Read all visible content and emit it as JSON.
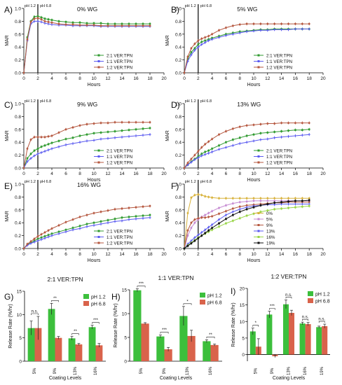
{
  "colors": {
    "green": "#2f9a2f",
    "blue": "#5a5af0",
    "brown": "#b5573f",
    "gold": "#d8b23a",
    "violet": "#c58ad2",
    "lime": "#9bd64a",
    "black": "#111111",
    "bar_green": "#3cbf3c",
    "bar_red": "#d9634b",
    "pink": "#f3a7c8"
  },
  "panel_letters": [
    "A)",
    "B)",
    "C)",
    "D)",
    "E)",
    "F)",
    "G)",
    "H)",
    "I)"
  ],
  "ph_labels": {
    "left": "pH 1.2",
    "right": "pH 6.8"
  },
  "chart_data": [
    {
      "id": "A",
      "type": "line",
      "title": "0% WG",
      "xlabel": "Hours",
      "ylabel": "MAR",
      "ylim": [
        0,
        1.0
      ],
      "xlim": [
        0,
        20
      ],
      "xticks": [
        0,
        2,
        4,
        6,
        8,
        10,
        12,
        14,
        16,
        18,
        20
      ],
      "yticks": [
        0,
        0.2,
        0.4,
        0.6,
        0.8,
        1.0
      ],
      "ph_line_x": 2,
      "legend_position": "bottom-right",
      "x": [
        0,
        0.5,
        1,
        1.5,
        2,
        2.5,
        3,
        3.5,
        4,
        5,
        6,
        7,
        8,
        9,
        10,
        11,
        12,
        13,
        14,
        15,
        16,
        17,
        18
      ],
      "series": [
        {
          "name": "2:1 VER:TPN",
          "color": "green",
          "values": [
            0,
            0.55,
            0.8,
            0.87,
            0.88,
            0.86,
            0.84,
            0.83,
            0.82,
            0.8,
            0.79,
            0.78,
            0.78,
            0.77,
            0.77,
            0.77,
            0.76,
            0.76,
            0.76,
            0.76,
            0.76,
            0.76,
            0.76
          ]
        },
        {
          "name": "1:1 VER:TPN",
          "color": "blue",
          "values": [
            0,
            0.5,
            0.76,
            0.8,
            0.8,
            0.79,
            0.77,
            0.76,
            0.75,
            0.74,
            0.74,
            0.73,
            0.73,
            0.73,
            0.73,
            0.72,
            0.72,
            0.72,
            0.72,
            0.72,
            0.72,
            0.72,
            0.72
          ]
        },
        {
          "name": "1:2 VER:TPN",
          "color": "brown",
          "values": [
            0,
            0.52,
            0.79,
            0.84,
            0.85,
            0.83,
            0.8,
            0.79,
            0.78,
            0.76,
            0.75,
            0.75,
            0.74,
            0.74,
            0.74,
            0.73,
            0.73,
            0.73,
            0.73,
            0.73,
            0.73,
            0.73,
            0.73
          ]
        }
      ]
    },
    {
      "id": "B",
      "type": "line",
      "title": "5% WG",
      "xlabel": "Hours",
      "ylabel": "MAR",
      "ylim": [
        0,
        1.0
      ],
      "xlim": [
        0,
        20
      ],
      "xticks": [
        0,
        2,
        4,
        6,
        8,
        10,
        12,
        14,
        16,
        18,
        20
      ],
      "yticks": [
        0,
        0.2,
        0.4,
        0.6,
        0.8,
        1.0
      ],
      "ph_line_x": 2,
      "legend_position": "bottom-right",
      "x": [
        0,
        0.5,
        1,
        1.5,
        2,
        2.5,
        3,
        3.5,
        4,
        5,
        6,
        7,
        8,
        9,
        10,
        11,
        12,
        13,
        14,
        15,
        16,
        17,
        18
      ],
      "series": [
        {
          "name": "2:1 VER:TPN",
          "color": "green",
          "values": [
            0,
            0.22,
            0.32,
            0.38,
            0.44,
            0.48,
            0.5,
            0.52,
            0.54,
            0.57,
            0.6,
            0.62,
            0.64,
            0.65,
            0.66,
            0.67,
            0.67,
            0.68,
            0.68,
            0.68,
            0.68,
            0.68,
            0.68
          ]
        },
        {
          "name": "1:1 VER:TPN",
          "color": "blue",
          "values": [
            0,
            0.18,
            0.28,
            0.35,
            0.4,
            0.44,
            0.47,
            0.5,
            0.52,
            0.55,
            0.58,
            0.6,
            0.62,
            0.64,
            0.65,
            0.66,
            0.66,
            0.67,
            0.67,
            0.67,
            0.68,
            0.68,
            0.68
          ]
        },
        {
          "name": "1:2 VER:TPN",
          "color": "brown",
          "values": [
            0,
            0.25,
            0.38,
            0.45,
            0.5,
            0.53,
            0.55,
            0.57,
            0.6,
            0.66,
            0.7,
            0.73,
            0.75,
            0.76,
            0.76,
            0.76,
            0.76,
            0.76,
            0.76,
            0.76,
            0.76,
            0.76,
            0.76
          ]
        }
      ]
    },
    {
      "id": "C",
      "type": "line",
      "title": "9% WG",
      "xlabel": "Hours",
      "ylabel": "MAR",
      "ylim": [
        0,
        1.0
      ],
      "xlim": [
        0,
        20
      ],
      "xticks": [
        0,
        2,
        4,
        6,
        8,
        10,
        12,
        14,
        16,
        18,
        20
      ],
      "yticks": [
        0,
        0.2,
        0.4,
        0.6,
        0.8,
        1.0
      ],
      "ph_line_x": 2,
      "legend_position": "bottom-right",
      "x": [
        0,
        0.5,
        1,
        1.5,
        2,
        2.5,
        3,
        3.5,
        4,
        5,
        6,
        7,
        8,
        9,
        10,
        11,
        12,
        13,
        14,
        15,
        16,
        17,
        18
      ],
      "series": [
        {
          "name": "2:1 VER:TPN",
          "color": "green",
          "values": [
            0,
            0.15,
            0.22,
            0.27,
            0.3,
            0.33,
            0.35,
            0.37,
            0.39,
            0.42,
            0.45,
            0.47,
            0.5,
            0.52,
            0.54,
            0.55,
            0.56,
            0.57,
            0.58,
            0.59,
            0.6,
            0.61,
            0.62
          ]
        },
        {
          "name": "1:1 VER:TPN",
          "color": "blue",
          "values": [
            0,
            0.1,
            0.15,
            0.19,
            0.22,
            0.24,
            0.26,
            0.28,
            0.3,
            0.33,
            0.36,
            0.38,
            0.4,
            0.42,
            0.43,
            0.45,
            0.46,
            0.47,
            0.48,
            0.49,
            0.5,
            0.51,
            0.52
          ]
        },
        {
          "name": "1:2 VER:TPN",
          "color": "brown",
          "values": [
            0,
            0.3,
            0.44,
            0.48,
            0.48,
            0.48,
            0.48,
            0.49,
            0.5,
            0.55,
            0.6,
            0.63,
            0.66,
            0.68,
            0.69,
            0.7,
            0.7,
            0.71,
            0.71,
            0.71,
            0.71,
            0.71,
            0.71
          ]
        }
      ]
    },
    {
      "id": "D",
      "type": "line",
      "title": "13%  WG",
      "xlabel": "Hours",
      "ylabel": "MAR",
      "ylim": [
        0,
        1.0
      ],
      "xlim": [
        0,
        20
      ],
      "xticks": [
        0,
        2,
        4,
        6,
        8,
        10,
        12,
        14,
        16,
        18,
        20
      ],
      "yticks": [
        0,
        0.2,
        0.4,
        0.6,
        0.8,
        1.0
      ],
      "ph_line_x": 2,
      "legend_position": "bottom-right",
      "x": [
        0,
        0.5,
        1,
        1.5,
        2,
        2.5,
        3,
        3.5,
        4,
        5,
        6,
        7,
        8,
        9,
        10,
        11,
        12,
        13,
        14,
        15,
        16,
        17,
        18
      ],
      "series": [
        {
          "name": "2:1 VER:TPN",
          "color": "green",
          "values": [
            0,
            0.05,
            0.1,
            0.14,
            0.18,
            0.22,
            0.25,
            0.27,
            0.3,
            0.35,
            0.4,
            0.44,
            0.47,
            0.5,
            0.52,
            0.54,
            0.55,
            0.56,
            0.57,
            0.58,
            0.59,
            0.59,
            0.6
          ]
        },
        {
          "name": "1:1 VER:TPN",
          "color": "blue",
          "values": [
            0,
            0.05,
            0.09,
            0.13,
            0.16,
            0.19,
            0.21,
            0.23,
            0.25,
            0.29,
            0.32,
            0.35,
            0.38,
            0.4,
            0.42,
            0.44,
            0.45,
            0.47,
            0.48,
            0.49,
            0.5,
            0.51,
            0.52
          ]
        },
        {
          "name": "1:2 VER:TPN",
          "color": "brown",
          "values": [
            0,
            0.08,
            0.14,
            0.2,
            0.26,
            0.32,
            0.37,
            0.41,
            0.45,
            0.52,
            0.57,
            0.61,
            0.64,
            0.66,
            0.67,
            0.68,
            0.69,
            0.69,
            0.7,
            0.7,
            0.7,
            0.7,
            0.7
          ]
        }
      ]
    },
    {
      "id": "E",
      "type": "line",
      "title": "16% WG",
      "xlabel": "Hours",
      "ylabel": "MAR",
      "ylim": [
        0,
        1.0
      ],
      "xlim": [
        0,
        20
      ],
      "xticks": [
        0,
        2,
        4,
        6,
        8,
        10,
        12,
        14,
        16,
        18,
        20
      ],
      "yticks": [
        0,
        0.2,
        0.4,
        0.6,
        0.8,
        1.0
      ],
      "ph_line_x": 2,
      "legend_position": "bottom-right",
      "x": [
        0,
        0.5,
        1,
        1.5,
        2,
        2.5,
        3,
        3.5,
        4,
        5,
        6,
        7,
        8,
        9,
        10,
        11,
        12,
        13,
        14,
        15,
        16,
        17,
        18
      ],
      "series": [
        {
          "name": "2:1 VER:TPN",
          "color": "green",
          "values": [
            0,
            0.06,
            0.09,
            0.12,
            0.15,
            0.17,
            0.19,
            0.21,
            0.23,
            0.26,
            0.29,
            0.32,
            0.35,
            0.38,
            0.4,
            0.42,
            0.44,
            0.46,
            0.48,
            0.49,
            0.5,
            0.51,
            0.52
          ]
        },
        {
          "name": "1:1 VER:TPN",
          "color": "blue",
          "values": [
            0,
            0.05,
            0.08,
            0.1,
            0.12,
            0.14,
            0.16,
            0.18,
            0.2,
            0.23,
            0.26,
            0.29,
            0.31,
            0.34,
            0.36,
            0.38,
            0.4,
            0.42,
            0.43,
            0.45,
            0.46,
            0.47,
            0.48
          ]
        },
        {
          "name": "1:2 VER:TPN",
          "color": "brown",
          "values": [
            0,
            0.07,
            0.11,
            0.15,
            0.19,
            0.22,
            0.25,
            0.28,
            0.31,
            0.36,
            0.41,
            0.45,
            0.49,
            0.52,
            0.55,
            0.57,
            0.59,
            0.61,
            0.62,
            0.63,
            0.64,
            0.65,
            0.66
          ]
        }
      ]
    },
    {
      "id": "F",
      "type": "line",
      "title": "",
      "xlabel": "Hours",
      "ylabel": "MAR",
      "ylim": [
        0,
        1.0
      ],
      "xlim": [
        0,
        20
      ],
      "xticks": [
        0,
        2,
        4,
        6,
        8,
        10,
        12,
        14,
        16,
        18,
        20
      ],
      "yticks": [
        0,
        0.2,
        0.4,
        0.6,
        0.8,
        1.0
      ],
      "ph_line_x": 2,
      "legend_position": "bottom-right",
      "x": [
        0,
        0.5,
        1,
        1.5,
        2,
        2.5,
        3,
        3.5,
        4,
        5,
        6,
        7,
        8,
        9,
        10,
        11,
        12,
        13,
        14,
        15,
        16,
        17,
        18
      ],
      "series": [
        {
          "name": "0%",
          "color": "gold",
          "values": [
            0,
            0.55,
            0.79,
            0.83,
            0.84,
            0.83,
            0.81,
            0.8,
            0.79,
            0.78,
            0.78,
            0.78,
            0.78,
            0.78,
            0.78,
            0.78,
            0.78,
            0.78,
            0.78,
            0.78,
            0.78,
            0.78,
            0.78
          ]
        },
        {
          "name": "5%",
          "color": "violet",
          "values": [
            0,
            0.2,
            0.32,
            0.4,
            0.45,
            0.49,
            0.52,
            0.55,
            0.58,
            0.63,
            0.67,
            0.7,
            0.72,
            0.73,
            0.74,
            0.74,
            0.74,
            0.74,
            0.74,
            0.74,
            0.74,
            0.74,
            0.74
          ]
        },
        {
          "name": "9%",
          "color": "brown",
          "values": [
            0,
            0.28,
            0.4,
            0.45,
            0.47,
            0.48,
            0.48,
            0.49,
            0.5,
            0.54,
            0.58,
            0.62,
            0.65,
            0.67,
            0.68,
            0.69,
            0.7,
            0.71,
            0.71,
            0.72,
            0.72,
            0.72,
            0.72
          ]
        },
        {
          "name": "13%",
          "color": "blue",
          "values": [
            0,
            0.07,
            0.12,
            0.17,
            0.21,
            0.25,
            0.29,
            0.33,
            0.37,
            0.45,
            0.52,
            0.57,
            0.61,
            0.64,
            0.66,
            0.67,
            0.68,
            0.68,
            0.69,
            0.69,
            0.69,
            0.69,
            0.69
          ]
        },
        {
          "name": "16%",
          "color": "lime",
          "values": [
            0,
            0.05,
            0.09,
            0.13,
            0.17,
            0.2,
            0.23,
            0.26,
            0.29,
            0.34,
            0.39,
            0.43,
            0.47,
            0.51,
            0.54,
            0.57,
            0.59,
            0.61,
            0.62,
            0.63,
            0.64,
            0.65,
            0.66
          ]
        },
        {
          "name": "19%",
          "color": "black",
          "values": [
            0,
            0.04,
            0.08,
            0.12,
            0.16,
            0.2,
            0.24,
            0.28,
            0.32,
            0.39,
            0.46,
            0.52,
            0.57,
            0.61,
            0.64,
            0.67,
            0.69,
            0.71,
            0.72,
            0.73,
            0.74,
            0.74,
            0.75
          ]
        }
      ]
    },
    {
      "id": "G",
      "type": "bar",
      "title": "2:1 VER:TPN",
      "xlabel": "Coating Levels",
      "ylabel": "Release Rate (%/hr)",
      "ylim": [
        0,
        15
      ],
      "yticks": [
        0,
        5,
        10,
        15
      ],
      "categories": [
        "5%",
        "9%",
        "13%",
        "16%"
      ],
      "legend_position": "top-right",
      "series": [
        {
          "name": "pH 1.2",
          "color": "bar_green",
          "values": [
            7.1,
            11.2,
            4.9,
            7.3
          ],
          "errors": [
            1.5,
            1.2,
            0.4,
            0.4
          ]
        },
        {
          "name": "pH 6.8",
          "color": "bar_red",
          "values": [
            7.1,
            5.0,
            3.6,
            3.4
          ],
          "errors": [
            2.5,
            0.3,
            0.2,
            0.4
          ]
        }
      ],
      "significance": [
        "n.s.",
        "**",
        "**",
        "***"
      ]
    },
    {
      "id": "H",
      "type": "bar",
      "title": "1:1 VER:TPN",
      "xlabel": "Coating Levels",
      "ylabel": "Release Rate (%/hr)",
      "ylim": [
        0,
        15
      ],
      "yticks": [
        0,
        5,
        10,
        15
      ],
      "categories": [
        "5%",
        "9%",
        "13%",
        "16%"
      ],
      "legend_position": "top-right",
      "series": [
        {
          "name": "pH 1.2",
          "color": "bar_green",
          "values": [
            14.9,
            5.2,
            9.5,
            4.2
          ],
          "errors": [
            0.3,
            0.3,
            2.0,
            0.3
          ]
        },
        {
          "name": "pH 6.8",
          "color": "bar_red",
          "values": [
            7.9,
            2.5,
            5.3,
            3.4
          ],
          "errors": [
            0.2,
            0.4,
            1.2,
            0.2
          ]
        }
      ],
      "significance": [
        "***",
        "***",
        "*",
        "**"
      ]
    },
    {
      "id": "I",
      "type": "bar",
      "title": "1:2 VER:TPN",
      "xlabel": "Coating Levels",
      "ylabel": "Release Rate (%/hr)",
      "ylim": [
        -2,
        20
      ],
      "yticks": [
        0,
        5,
        10,
        15,
        20
      ],
      "categories": [
        "5%",
        "9%",
        "13%",
        "16%",
        "19%"
      ],
      "legend_position": "top-right",
      "series": [
        {
          "name": "pH 1.2",
          "color": "bar_green",
          "values": [
            7.0,
            12.1,
            15.2,
            9.4,
            8.3
          ],
          "errors": [
            1.0,
            1.0,
            1.3,
            0.4,
            0.3
          ]
        },
        {
          "name": "pH 6.8",
          "color": "bar_red",
          "values": [
            2.4,
            -0.5,
            12.6,
            9.2,
            8.6
          ],
          "errors": [
            2.4,
            0.4,
            0.8,
            0.5,
            0.6
          ]
        }
      ],
      "significance": [
        "*",
        "***",
        "n.s.",
        "n.s.",
        "n.s."
      ]
    }
  ]
}
